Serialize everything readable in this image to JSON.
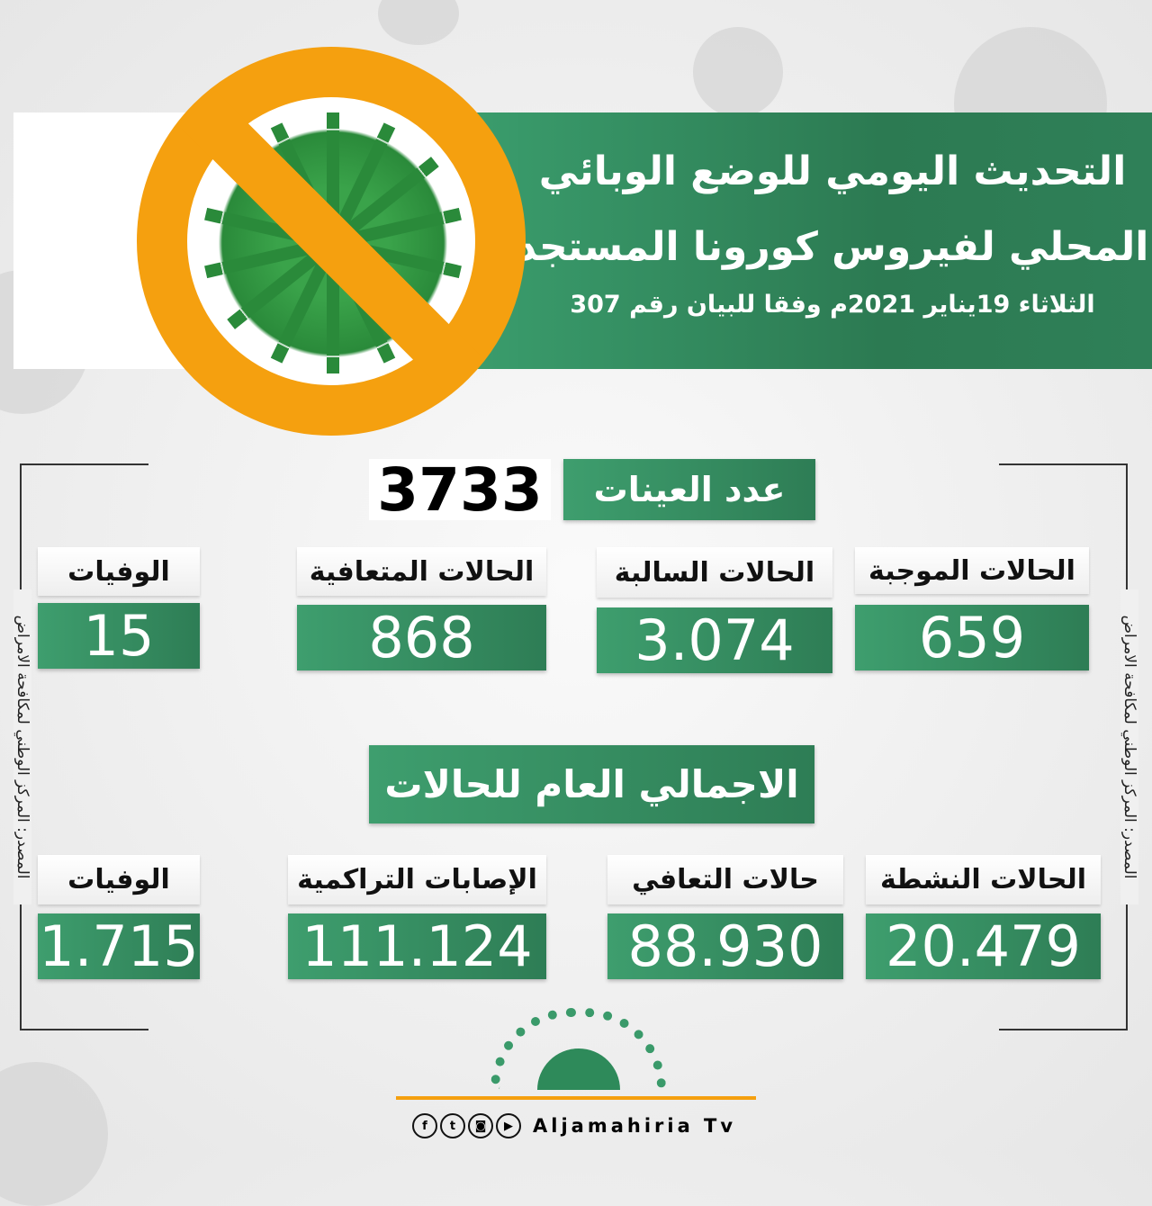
{
  "header": {
    "title_line1": "التحديث اليومي للوضع الوبائي",
    "title_line2": "المحلي لفيروس كورونا المستجد",
    "subtitle": "الثلاثاء 19يناير 2021م وفقا للبيان رقم 307"
  },
  "samples": {
    "label": "عدد العينات",
    "value": "3733"
  },
  "daily": [
    {
      "label": "الحالات الموجبة",
      "value": "659"
    },
    {
      "label": "الحالات السالبة",
      "value": "3.074"
    },
    {
      "label": "الحالات المتعافية",
      "value": "868"
    },
    {
      "label": "الوفيات",
      "value": "15"
    }
  ],
  "totals_title": "الاجمالي العام للحالات",
  "totals": [
    {
      "label": "الحالات النشطة",
      "value": "20.479"
    },
    {
      "label": "حالات التعافي",
      "value": "88.930"
    },
    {
      "label": "الإصابات التراكمية",
      "value": "111.124"
    },
    {
      "label": "الوفيات",
      "value": "1.715"
    }
  ],
  "source": "المصدر: المركز الوطني لمكافحة الامراض",
  "footer": {
    "brand": "Aljamahiria Tv",
    "icons": [
      "facebook-icon",
      "twitter-icon",
      "instagram-icon",
      "youtube-icon"
    ]
  },
  "colors": {
    "green": "#2e7d55",
    "orange": "#f5a00f"
  }
}
